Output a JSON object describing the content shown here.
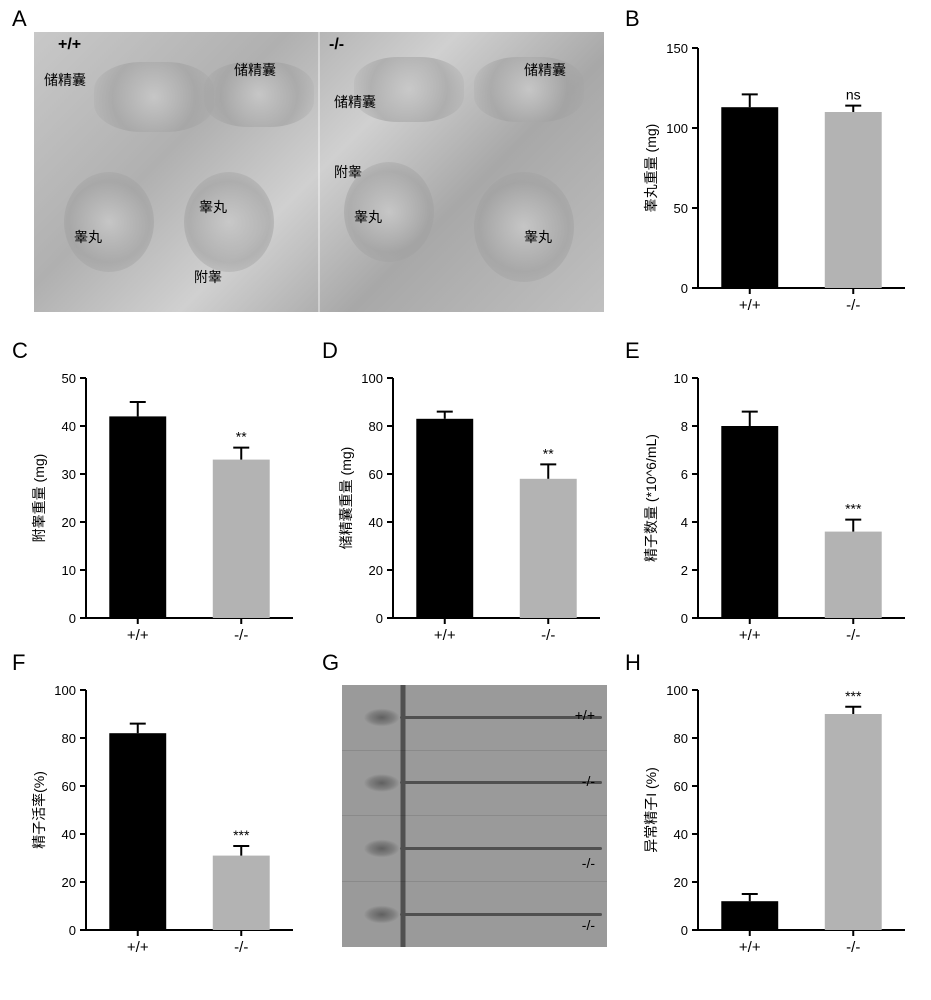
{
  "labels": {
    "A": "A",
    "B": "B",
    "C": "C",
    "D": "D",
    "E": "E",
    "F": "F",
    "G": "G",
    "H": "H"
  },
  "imageA": {
    "genotype_wt": "+/+",
    "genotype_ko": "-/-",
    "seminal_vesicle": "储精囊",
    "epididymis": "附睾",
    "testis": "睾丸"
  },
  "imageG": {
    "row1": "+/+",
    "row2": "-/-",
    "row3": "-/-",
    "row4": "-/-"
  },
  "chartB": {
    "type": "bar",
    "ylabel": "睾丸重量 (mg)",
    "categories": [
      "+/+",
      "-/-"
    ],
    "values": [
      113,
      110
    ],
    "errors": [
      8,
      4
    ],
    "sig": "ns",
    "ylim": [
      0,
      150
    ],
    "ytick_step": 50,
    "colors": [
      "#000000",
      "#b3b3b3"
    ],
    "label_fontsize": 14,
    "tick_fontsize": 13,
    "bar_width": 0.55,
    "background": "#ffffff",
    "axis_color": "#000000"
  },
  "chartC": {
    "type": "bar",
    "ylabel": "附睾重量 (mg)",
    "categories": [
      "+/+",
      "-/-"
    ],
    "values": [
      42,
      33
    ],
    "errors": [
      3,
      2.5
    ],
    "sig": "**",
    "ylim": [
      0,
      50
    ],
    "ytick_step": 10,
    "colors": [
      "#000000",
      "#b3b3b3"
    ],
    "label_fontsize": 14,
    "tick_fontsize": 13,
    "bar_width": 0.55,
    "background": "#ffffff",
    "axis_color": "#000000"
  },
  "chartD": {
    "type": "bar",
    "ylabel": "储精囊重量 (mg)",
    "categories": [
      "+/+",
      "-/-"
    ],
    "values": [
      83,
      58
    ],
    "errors": [
      3,
      6
    ],
    "sig": "**",
    "ylim": [
      0,
      100
    ],
    "ytick_step": 20,
    "colors": [
      "#000000",
      "#b3b3b3"
    ],
    "label_fontsize": 14,
    "tick_fontsize": 13,
    "bar_width": 0.55,
    "background": "#ffffff",
    "axis_color": "#000000"
  },
  "chartE": {
    "type": "bar",
    "ylabel": "精子数量 (*10^6/mL)",
    "categories": [
      "+/+",
      "-/-"
    ],
    "values": [
      8,
      3.6
    ],
    "errors": [
      0.6,
      0.5
    ],
    "sig": "***",
    "ylim": [
      0,
      10
    ],
    "ytick_step": 2,
    "colors": [
      "#000000",
      "#b3b3b3"
    ],
    "label_fontsize": 14,
    "tick_fontsize": 13,
    "bar_width": 0.55,
    "background": "#ffffff",
    "axis_color": "#000000"
  },
  "chartF": {
    "type": "bar",
    "ylabel": "精子活率(%)",
    "categories": [
      "+/+",
      "-/-"
    ],
    "values": [
      82,
      31
    ],
    "errors": [
      4,
      4
    ],
    "sig": "***",
    "ylim": [
      0,
      100
    ],
    "ytick_step": 20,
    "colors": [
      "#000000",
      "#b3b3b3"
    ],
    "label_fontsize": 14,
    "tick_fontsize": 13,
    "bar_width": 0.55,
    "background": "#ffffff",
    "axis_color": "#000000"
  },
  "chartH": {
    "type": "bar",
    "ylabel": "异常精子I (%)",
    "categories": [
      "+/+",
      "-/-"
    ],
    "values": [
      12,
      90
    ],
    "errors": [
      3,
      3
    ],
    "sig": "***",
    "sig_on": 1,
    "ylim": [
      0,
      100
    ],
    "ytick_step": 20,
    "colors": [
      "#000000",
      "#b3b3b3"
    ],
    "label_fontsize": 14,
    "tick_fontsize": 13,
    "bar_width": 0.55,
    "background": "#ffffff",
    "axis_color": "#000000"
  }
}
